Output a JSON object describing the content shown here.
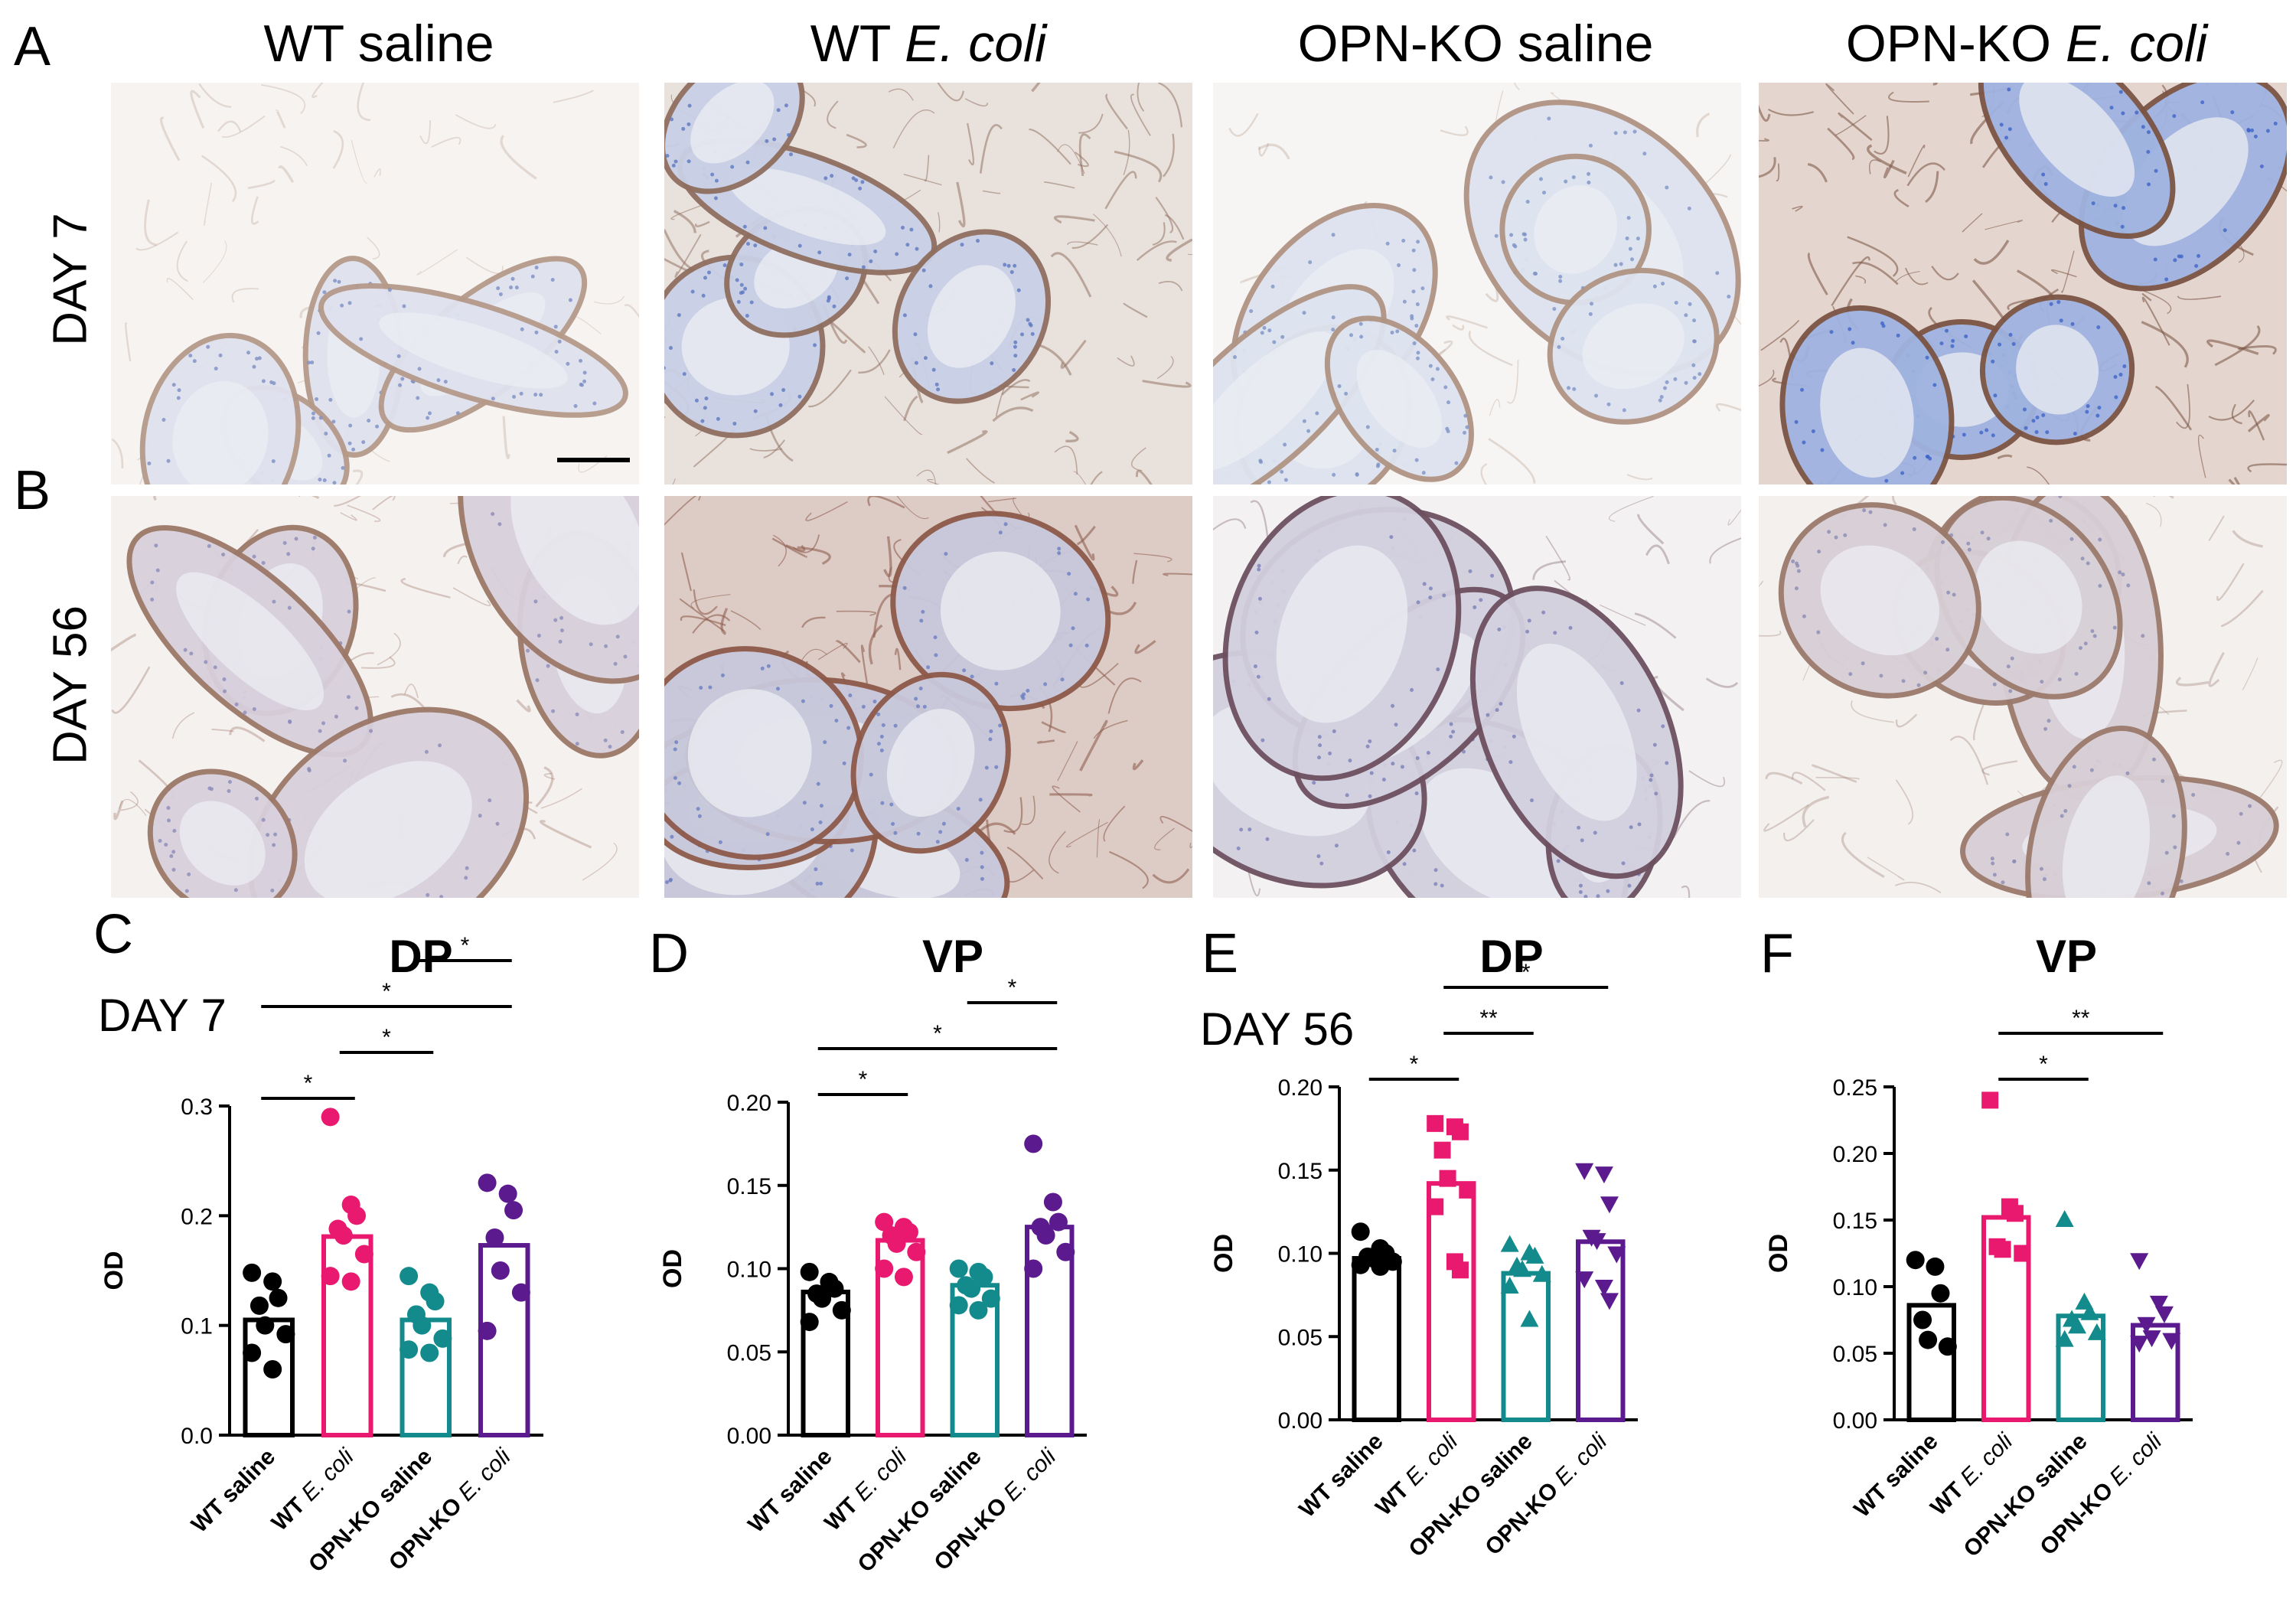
{
  "panels": {
    "A": "A",
    "B": "B",
    "C": "C",
    "D": "D",
    "E": "E",
    "F": "F"
  },
  "columns": {
    "wt_saline": "WT saline",
    "wt_ecoli_prefix": "WT ",
    "wt_ecoli_italic": "E. coli",
    "ko_saline": "OPN-KO saline",
    "ko_ecoli_prefix": "OPN-KO ",
    "ko_ecoli_italic": "E. coli"
  },
  "rows": {
    "day7": "DAY 7",
    "day56": "DAY 56"
  },
  "day_labels": {
    "day7": "DAY 7",
    "day56": "DAY 56"
  },
  "colors": {
    "wt_saline": "#000000",
    "wt_ecoli": "#e8196f",
    "ko_saline": "#138b8c",
    "ko_ecoli": "#5b1a8e"
  },
  "chart_data": [
    {
      "panel": "C",
      "type": "bar",
      "title": "DP",
      "ylabel": "OD",
      "categories": [
        "WT saline",
        "WT E. coli",
        "OPN-KO saline",
        "OPN-KO E. coli"
      ],
      "yticks": [
        "0.0",
        "0.1",
        "0.2",
        "0.3"
      ],
      "ylim": [
        0,
        0.3
      ],
      "values": [
        0.105,
        0.181,
        0.105,
        0.173
      ],
      "markers": [
        "circle",
        "circle",
        "circle",
        "circle"
      ],
      "points": [
        [
          0.148,
          0.14,
          0.125,
          0.118,
          0.1,
          0.092,
          0.075,
          0.06
        ],
        [
          0.29,
          0.21,
          0.2,
          0.188,
          0.182,
          0.165,
          0.145,
          0.14
        ],
        [
          0.145,
          0.13,
          0.122,
          0.11,
          0.1,
          0.088,
          0.078,
          0.075
        ],
        [
          0.23,
          0.22,
          0.205,
          0.18,
          0.15,
          0.13,
          0.095
        ]
      ],
      "significance": [
        {
          "from": 0,
          "to": 1,
          "label": "*"
        },
        {
          "from": 1,
          "to": 2,
          "label": "*"
        },
        {
          "from": 0,
          "to": 3,
          "label": "*"
        },
        {
          "from": 2,
          "to": 3,
          "label": "*"
        }
      ]
    },
    {
      "panel": "D",
      "type": "bar",
      "title": "VP",
      "ylabel": "OD",
      "categories": [
        "WT saline",
        "WT E. coli",
        "OPN-KO saline",
        "OPN-KO E. coli"
      ],
      "yticks": [
        "0.00",
        "0.05",
        "0.10",
        "0.15",
        "0.20"
      ],
      "ylim": [
        0,
        0.2
      ],
      "values": [
        0.086,
        0.117,
        0.09,
        0.125
      ],
      "markers": [
        "circle",
        "circle",
        "circle",
        "circle"
      ],
      "points": [
        [
          0.098,
          0.092,
          0.088,
          0.085,
          0.082,
          0.075,
          0.068
        ],
        [
          0.128,
          0.125,
          0.122,
          0.12,
          0.115,
          0.11,
          0.1,
          0.095
        ],
        [
          0.1,
          0.098,
          0.095,
          0.09,
          0.088,
          0.082,
          0.078,
          0.075
        ],
        [
          0.175,
          0.14,
          0.128,
          0.125,
          0.12,
          0.11,
          0.1
        ]
      ],
      "significance": [
        {
          "from": 0,
          "to": 1,
          "label": "*"
        },
        {
          "from": 0,
          "to": 3,
          "label": "*"
        },
        {
          "from": 2,
          "to": 3,
          "label": "*"
        }
      ]
    },
    {
      "panel": "E",
      "type": "bar",
      "title": "DP",
      "ylabel": "OD",
      "categories": [
        "WT saline",
        "WT E. coli",
        "OPN-KO saline",
        "OPN-KO E. coli"
      ],
      "yticks": [
        "0.00",
        "0.05",
        "0.10",
        "0.15",
        "0.20"
      ],
      "ylim": [
        0,
        0.2
      ],
      "values": [
        0.097,
        0.142,
        0.088,
        0.107
      ],
      "markers": [
        "circle",
        "square",
        "triangle-up",
        "triangle-down"
      ],
      "points": [
        [
          0.113,
          0.103,
          0.1,
          0.098,
          0.097,
          0.095,
          0.093,
          0.092
        ],
        [
          0.178,
          0.176,
          0.173,
          0.162,
          0.145,
          0.138,
          0.128,
          0.095,
          0.09
        ],
        [
          0.105,
          0.1,
          0.098,
          0.092,
          0.09,
          0.087,
          0.08,
          0.06
        ],
        [
          0.15,
          0.148,
          0.13,
          0.11,
          0.108,
          0.1,
          0.085,
          0.08,
          0.072
        ]
      ],
      "significance": [
        {
          "from": 0,
          "to": 1,
          "label": "*"
        },
        {
          "from": 1,
          "to": 2,
          "label": "**"
        },
        {
          "from": 1,
          "to": 3,
          "label": "*"
        }
      ]
    },
    {
      "panel": "F",
      "type": "bar",
      "title": "VP",
      "ylabel": "OD",
      "categories": [
        "WT saline",
        "WT E. coli",
        "OPN-KO saline",
        "OPN-KO E. coli"
      ],
      "yticks": [
        "0.00",
        "0.05",
        "0.10",
        "0.15",
        "0.20",
        "0.25"
      ],
      "ylim": [
        0,
        0.25
      ],
      "values": [
        0.086,
        0.152,
        0.078,
        0.071
      ],
      "markers": [
        "circle",
        "square",
        "triangle-up",
        "triangle-down"
      ],
      "points": [
        [
          0.12,
          0.115,
          0.095,
          0.075,
          0.06,
          0.055
        ],
        [
          0.24,
          0.16,
          0.155,
          0.13,
          0.128,
          0.125
        ],
        [
          0.15,
          0.088,
          0.08,
          0.075,
          0.07,
          0.065,
          0.06
        ],
        [
          0.12,
          0.088,
          0.08,
          0.072,
          0.062,
          0.06,
          0.058
        ]
      ],
      "significance": [
        {
          "from": 1,
          "to": 2,
          "label": "*"
        },
        {
          "from": 1,
          "to": 3,
          "label": "**"
        }
      ]
    }
  ]
}
